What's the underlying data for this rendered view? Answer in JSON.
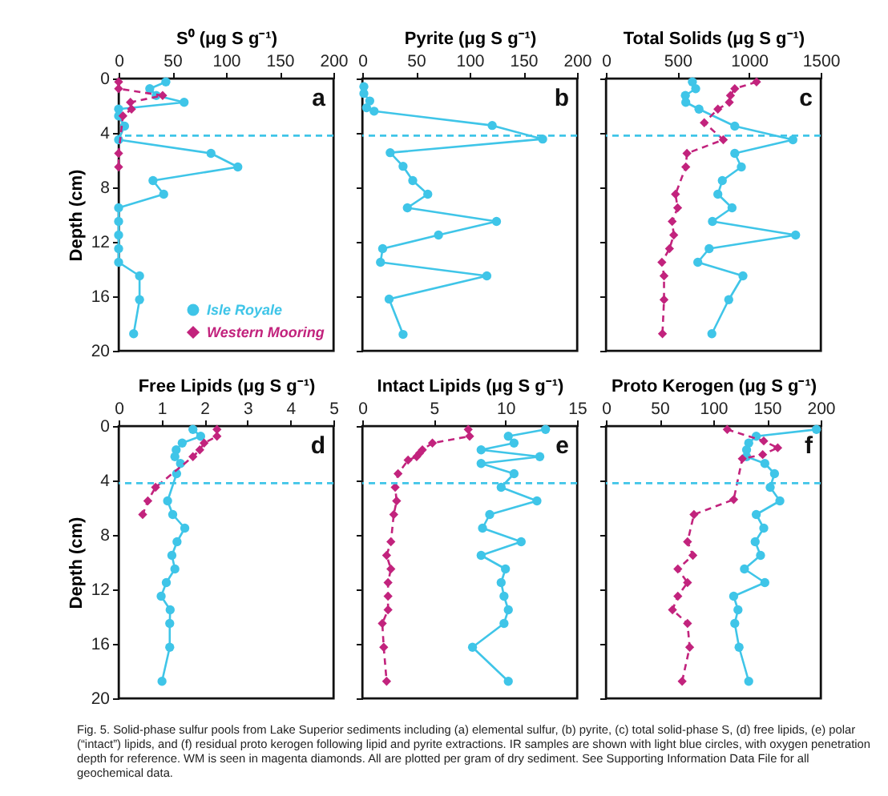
{
  "chart_data": [
    {
      "type": "line",
      "xlabel": "S⁰ (μg S g⁻¹)",
      "ylabel": "Depth (cm)",
      "xlim": [
        0,
        200
      ],
      "xticks": [
        0,
        50,
        100,
        150,
        200
      ],
      "ylim": [
        20,
        0
      ],
      "yticks": [
        0,
        4,
        8,
        12,
        16,
        20
      ],
      "legend": "bottom right",
      "series": [
        {
          "name": "Isle Royale",
          "color": "#3fc5e8",
          "marker": "circle",
          "line_style": "solid",
          "x": [
            44,
            29,
            35,
            61,
            0,
            0,
            5.5,
            0,
            86,
            111,
            32,
            42,
            0,
            0,
            0,
            0,
            0,
            19.5,
            19.5,
            14
          ],
          "values": [
            0.25,
            0.75,
            1.25,
            1.75,
            2.25,
            2.75,
            3.5,
            4.5,
            5.5,
            6.5,
            7.5,
            8.5,
            9.5,
            10.5,
            11.5,
            12.5,
            13.5,
            14.5,
            16.25,
            18.75
          ]
        },
        {
          "name": "Western Mooring",
          "color": "#c2237d",
          "marker": "diamond",
          "line_style": "dashed",
          "x": [
            0,
            0,
            41,
            11,
            12,
            4,
            0,
            0
          ],
          "values": [
            0.25,
            0.75,
            1.25,
            1.75,
            2.25,
            2.75,
            5.5,
            6.5
          ]
        }
      ],
      "ref_lines": [
        {
          "axis": "y",
          "value": 4.2,
          "color": "#3fc5e8",
          "line_style": "dashed"
        }
      ],
      "annotations": [
        "a"
      ]
    },
    {
      "type": "line",
      "xlabel": "Pyrite (μg S g⁻¹)",
      "xlim": [
        0,
        200
      ],
      "xticks": [
        0,
        50,
        100,
        150,
        200
      ],
      "ylim": [
        20,
        0
      ],
      "yticks": [
        0,
        4,
        8,
        12,
        16,
        20
      ],
      "tick_labels": "x",
      "series": [
        {
          "color": "#3fc5e8",
          "marker": "circle",
          "line_style": "solid",
          "x": [
            1.5,
            1.5,
            7,
            4,
            11,
            121,
            168,
            26,
            38,
            47,
            61,
            42,
            125,
            71,
            19,
            17,
            116,
            25,
            38
          ],
          "values": [
            0.6,
            1.1,
            1.65,
            2.15,
            2.4,
            3.45,
            4.45,
            5.45,
            6.45,
            7.5,
            8.5,
            9.5,
            10.5,
            11.5,
            12.5,
            13.5,
            14.5,
            16.2,
            18.8
          ]
        }
      ],
      "ref_lines": [
        {
          "axis": "y",
          "value": 4.2,
          "color": "#3fc5e8",
          "line_style": "dashed"
        }
      ],
      "annotations": [
        "b"
      ]
    },
    {
      "type": "line",
      "xlabel": "Total Solids (μg S g⁻¹)",
      "xlim": [
        0,
        1500
      ],
      "xticks": [
        0,
        500,
        1000,
        1500
      ],
      "ylim": [
        20,
        0
      ],
      "yticks": [
        0,
        4,
        8,
        12,
        16,
        20
      ],
      "tick_labels": "x",
      "series": [
        {
          "color": "#3fc5e8",
          "marker": "circle",
          "line_style": "solid",
          "x": [
            604,
            627,
            555,
            558,
            650,
            900,
            1306,
            900,
            946,
            813,
            782,
            881,
            744,
            1325,
            721,
            642,
            957,
            858,
            740
          ],
          "values": [
            0.25,
            0.75,
            1.25,
            1.75,
            2.25,
            3.5,
            4.5,
            5.5,
            6.5,
            7.5,
            8.5,
            9.5,
            10.5,
            11.5,
            12.5,
            13.5,
            14.5,
            16.25,
            18.75
          ]
        },
        {
          "color": "#c2237d",
          "marker": "diamond",
          "line_style": "dashed",
          "x": [
            1052,
            900,
            870,
            862,
            782,
            687,
            820,
            566,
            558,
            486,
            501,
            463,
            474,
            444,
            391,
            406,
            406,
            395
          ],
          "values": [
            0.25,
            0.75,
            1.25,
            1.75,
            2.25,
            3.25,
            4.5,
            5.5,
            6.5,
            8.5,
            9.5,
            10.5,
            11.5,
            12.5,
            13.5,
            14.5,
            16.25,
            18.75
          ]
        }
      ],
      "ref_lines": [
        {
          "axis": "y",
          "value": 4.2,
          "color": "#3fc5e8",
          "line_style": "dashed"
        }
      ],
      "annotations": [
        "c"
      ]
    },
    {
      "type": "line",
      "xlabel": "Free Lipids (μg S g⁻¹)",
      "ylabel": "Depth (cm)",
      "xlim": [
        0,
        5
      ],
      "xticks": [
        0,
        1,
        2,
        3,
        4,
        5
      ],
      "ylim": [
        20,
        0
      ],
      "yticks": [
        0,
        4,
        8,
        12,
        16,
        20
      ],
      "series": [
        {
          "color": "#3fc5e8",
          "marker": "circle",
          "line_style": "solid",
          "x": [
            1.73,
            1.91,
            1.48,
            1.34,
            1.31,
            1.44,
            1.35,
            1.14,
            1.26,
            1.54,
            1.36,
            1.24,
            1.31,
            1.11,
            0.99,
            1.2,
            1.19,
            1.19,
            1.01
          ],
          "values": [
            0.25,
            0.75,
            1.25,
            1.75,
            2.25,
            2.75,
            3.5,
            5.5,
            6.5,
            7.5,
            8.5,
            9.5,
            10.5,
            11.5,
            12.5,
            13.5,
            14.5,
            16.25,
            18.75
          ]
        },
        {
          "color": "#c2237d",
          "marker": "diamond",
          "line_style": "dashed",
          "x": [
            2.29,
            2.29,
            1.99,
            1.89,
            1.73,
            0.86,
            0.68,
            0.56
          ],
          "values": [
            0.25,
            0.75,
            1.25,
            1.75,
            2.25,
            4.5,
            5.5,
            6.5
          ]
        }
      ],
      "ref_lines": [
        {
          "axis": "y",
          "value": 4.2,
          "color": "#3fc5e8",
          "line_style": "dashed"
        }
      ],
      "annotations": [
        "d"
      ]
    },
    {
      "type": "line",
      "xlabel": "Intact Lipids (μg S g⁻¹)",
      "xlim": [
        0,
        15
      ],
      "xticks": [
        0,
        5,
        10,
        15
      ],
      "ylim": [
        20,
        0
      ],
      "yticks": [
        0,
        4,
        8,
        12,
        16,
        20
      ],
      "tick_labels": "x",
      "series": [
        {
          "color": "#3fc5e8",
          "marker": "circle",
          "line_style": "solid",
          "x": [
            12.8,
            10.2,
            10.6,
            8.3,
            12.4,
            8.3,
            10.6,
            9.7,
            12.2,
            8.9,
            8.4,
            11.1,
            8.3,
            10.0,
            9.7,
            9.9,
            10.2,
            9.9,
            7.7,
            10.2
          ],
          "values": [
            0.25,
            0.75,
            1.25,
            1.75,
            2.25,
            2.75,
            3.5,
            4.5,
            5.5,
            6.5,
            7.5,
            8.5,
            9.5,
            10.5,
            11.5,
            12.5,
            13.5,
            14.5,
            16.25,
            18.75
          ]
        },
        {
          "color": "#c2237d",
          "marker": "diamond",
          "line_style": "dashed",
          "x": [
            7.4,
            7.5,
            4.9,
            4.2,
            4.0,
            3.8,
            3.2,
            2.5,
            2.3,
            2.4,
            2.2,
            2.0,
            1.7,
            2.0,
            1.8,
            1.8,
            1.8,
            1.4,
            1.5,
            1.7
          ],
          "values": [
            0.25,
            0.75,
            1.25,
            1.75,
            2.0,
            2.25,
            2.5,
            3.5,
            4.5,
            5.5,
            6.5,
            8.5,
            9.5,
            10.5,
            11.5,
            12.5,
            13.5,
            14.5,
            16.25,
            18.75
          ]
        }
      ],
      "ref_lines": [
        {
          "axis": "y",
          "value": 4.2,
          "color": "#3fc5e8",
          "line_style": "dashed"
        }
      ],
      "annotations": [
        "e"
      ]
    },
    {
      "type": "line",
      "xlabel": "Proto Kerogen (μg S g⁻¹)",
      "xlim": [
        0,
        200
      ],
      "xticks": [
        0,
        50,
        100,
        150,
        200
      ],
      "ylim": [
        20,
        0
      ],
      "yticks": [
        0,
        4,
        8,
        12,
        16,
        20
      ],
      "tick_labels": "x",
      "series": [
        {
          "color": "#3fc5e8",
          "marker": "circle",
          "line_style": "solid",
          "x": [
            196,
            140,
            133,
            131,
            131,
            148,
            157,
            153,
            162,
            140,
            147,
            139,
            144,
            129,
            148,
            119,
            123,
            120,
            124,
            133
          ],
          "values": [
            0.25,
            0.75,
            1.25,
            1.75,
            2.25,
            2.75,
            3.5,
            4.5,
            5.5,
            6.5,
            7.5,
            8.5,
            9.5,
            10.5,
            11.5,
            12.5,
            13.5,
            14.5,
            16.25,
            18.75
          ]
        },
        {
          "color": "#c2237d",
          "marker": "diamond",
          "line_style": "dashed",
          "x": [
            113,
            147,
            160,
            146,
            127,
            119,
            82,
            76,
            81,
            67,
            76,
            67,
            62,
            76,
            78,
            71
          ],
          "values": [
            0.25,
            1.1,
            1.6,
            2.1,
            2.4,
            5.4,
            6.5,
            8.5,
            9.5,
            10.5,
            11.5,
            12.5,
            13.5,
            14.5,
            16.25,
            18.75
          ]
        }
      ],
      "ref_lines": [
        {
          "axis": "y",
          "value": 4.2,
          "color": "#3fc5e8",
          "line_style": "dashed"
        }
      ],
      "annotations": [
        "f",
        "Fig. 5. Solid-phase sulfur pools from Lake Superior sediments including (a) elemental sulfur, (b) pyrite, (c) total solid-phase S, (d) free lipids, (e) polar (“intact”) lipids, and (f) residual proto kerogen following lipid and pyrite extractions. IR samples are shown with light blue circles, with oxygen penetration depth for reference. WM is seen in magenta diamonds. All are plotted per gram of dry sediment. See Supporting Information Data File for all geochemical data."
      ]
    }
  ]
}
